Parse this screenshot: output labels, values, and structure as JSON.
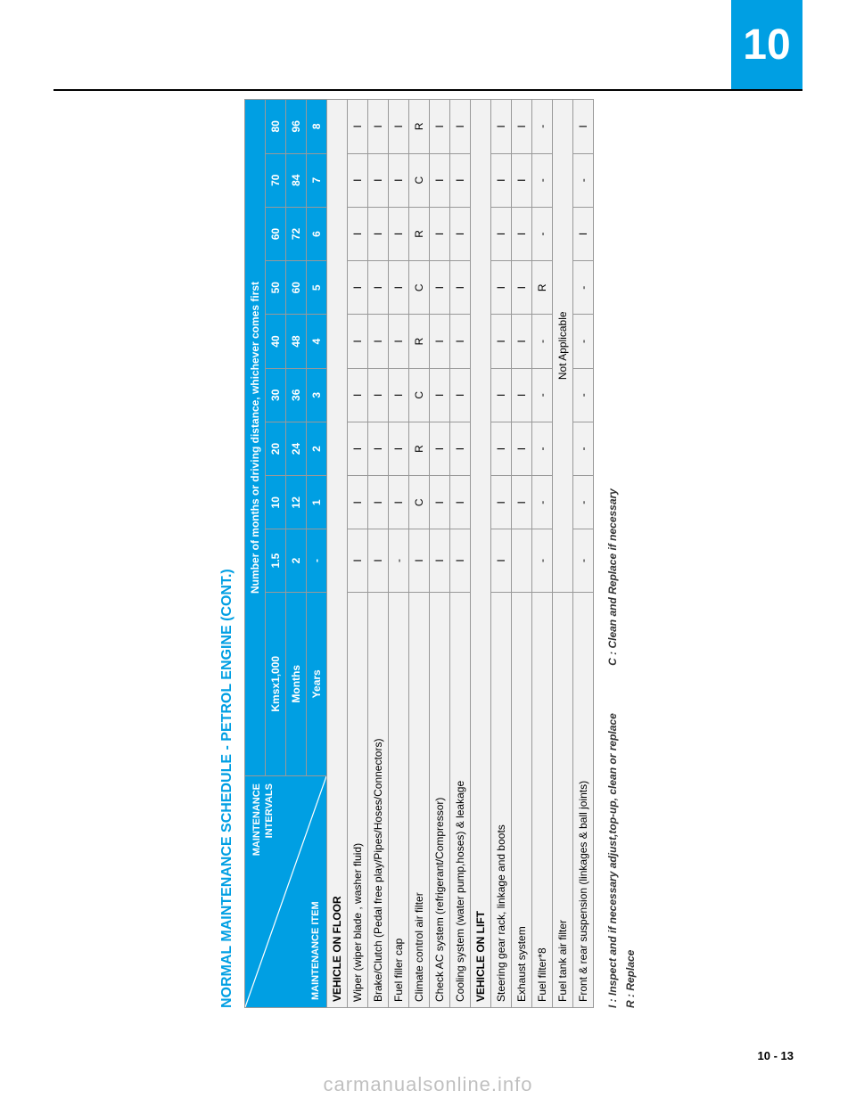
{
  "chapter_tab": "10",
  "page_number": "10 - 13",
  "watermark": "carmanualsonline.info",
  "title": "NORMAL MAINTENANCE SCHEDULE - PETROL ENGINE (CONT.)",
  "header": {
    "diag_top": "MAINTENANCE\nINTERVALS",
    "diag_bottom": "MAINTENANCE ITEM",
    "span_label": "Number of months or driving distance, whichever comes first",
    "row_labels": [
      "Kmsx1,000",
      "Months",
      "Years"
    ],
    "cols": {
      "kms": [
        "1.5",
        "10",
        "20",
        "30",
        "40",
        "50",
        "60",
        "70",
        "80"
      ],
      "months": [
        "2",
        "12",
        "24",
        "36",
        "48",
        "60",
        "72",
        "84",
        "96"
      ],
      "years": [
        "-",
        "1",
        "2",
        "3",
        "4",
        "5",
        "6",
        "7",
        "8"
      ]
    }
  },
  "sections": [
    {
      "title": "VEHICLE ON FLOOR",
      "rows": [
        {
          "label": "Wiper (wiper blade , washer fluid)",
          "cells": [
            "I",
            "I",
            "I",
            "I",
            "I",
            "I",
            "I",
            "I",
            "I"
          ]
        },
        {
          "label": "Brake/Clutch (Pedal free play/Pipes/Hoses/Connectors)",
          "cells": [
            "I",
            "I",
            "I",
            "I",
            "I",
            "I",
            "I",
            "I",
            "I"
          ]
        },
        {
          "label": "Fuel filler cap",
          "cells": [
            "-",
            "I",
            "I",
            "I",
            "I",
            "I",
            "I",
            "I",
            "I"
          ]
        },
        {
          "label": "Climate control air filter",
          "cells": [
            "I",
            "C",
            "R",
            "C",
            "R",
            "C",
            "R",
            "C",
            "R"
          ]
        },
        {
          "label": "Check AC system (refrigerant/Compressor)",
          "cells": [
            "I",
            "I",
            "I",
            "I",
            "I",
            "I",
            "I",
            "I",
            "I"
          ]
        },
        {
          "label": "Cooling system (water pump,hoses) & leakage",
          "cells": [
            "I",
            "I",
            "I",
            "I",
            "I",
            "I",
            "I",
            "I",
            "I"
          ]
        }
      ]
    },
    {
      "title": "VEHICLE ON LIFT",
      "rows": [
        {
          "label": "Steering gear rack, linkage and boots",
          "cells": [
            "I",
            "I",
            "I",
            "I",
            "I",
            "I",
            "I",
            "I",
            "I"
          ]
        },
        {
          "label": "Exhaust system",
          "cells": [
            "",
            "I",
            "I",
            "I",
            "I",
            "I",
            "I",
            "I",
            "I"
          ]
        },
        {
          "label": "Fuel filter*8",
          "cells": [
            "-",
            "-",
            "-",
            "-",
            "-",
            "R",
            "-",
            "-",
            "-"
          ]
        },
        {
          "label": "Fuel tank air filter",
          "span": "Not Applicable"
        },
        {
          "label": "Front & rear suspension (linkages & ball joints)",
          "cells": [
            "-",
            "-",
            "-",
            "-",
            "-",
            "-",
            "I",
            "-",
            "I"
          ]
        }
      ]
    }
  ],
  "legend": {
    "i": "I : Inspect and if necessary adjust,top-up, clean or replace",
    "c": "C : Clean and Replace if necessary",
    "r": "R : Replace"
  },
  "colors": {
    "accent": "#009fe3",
    "row_bg": "#f2f2f2",
    "border": "#999999"
  }
}
